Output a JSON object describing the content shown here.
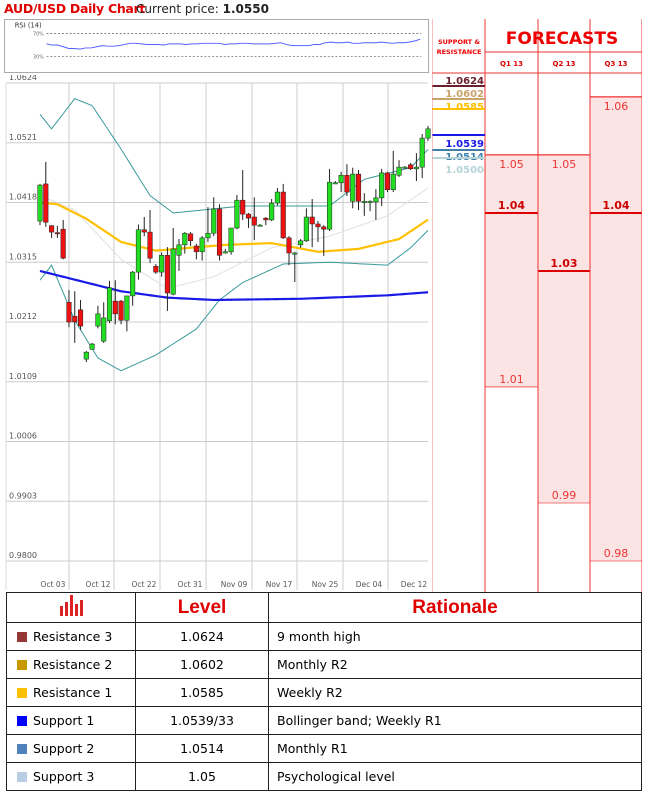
{
  "header": {
    "title": "AUD/USD Daily Chart",
    "price_label": "Current price:",
    "price_value": "1.0550"
  },
  "rsi": {
    "label": "RSI (14)",
    "levels": [
      "70%",
      "30%"
    ],
    "values": [
      52,
      50,
      50,
      47,
      44,
      44,
      43,
      45,
      45,
      47,
      49,
      48,
      48,
      49,
      51,
      53,
      53,
      52,
      51,
      51,
      51,
      50,
      52,
      52,
      52,
      51,
      52,
      52,
      53,
      53,
      53,
      53,
      51,
      52,
      52,
      53,
      53,
      52,
      52,
      52,
      52,
      53,
      54,
      51,
      49,
      49,
      49,
      49,
      51,
      51,
      54,
      55,
      54,
      54,
      55,
      53,
      53,
      54,
      54,
      54,
      55,
      54,
      53,
      54,
      54,
      55,
      57,
      60
    ]
  },
  "chart_data": {
    "type": "candlestick",
    "title": "AUD/USD Daily Chart",
    "ylim": [
      0.98,
      1.0624
    ],
    "y_ticks": [
      "1.0624",
      "1.0521",
      "1.0418",
      "1.0315",
      "1.0212",
      "1.0109",
      "1.0006",
      "0.9903",
      "0.9800"
    ],
    "x_ticks": [
      "Oct 03",
      "Oct 12",
      "Oct 22",
      "Oct 31",
      "Nov 09",
      "Nov 17",
      "Nov 25",
      "Dec 04",
      "Dec 12"
    ],
    "candles_ohlc": [
      [
        1.0386,
        1.045,
        1.0379,
        1.0448
      ],
      [
        1.045,
        1.0488,
        1.0376,
        1.0384
      ],
      [
        1.0378,
        1.0379,
        1.0357,
        1.0367
      ],
      [
        1.0366,
        1.0378,
        1.0357,
        1.0365
      ],
      [
        1.0372,
        1.0388,
        1.032,
        1.0322
      ],
      [
        1.0246,
        1.0267,
        1.0203,
        1.0212
      ],
      [
        1.0222,
        1.0265,
        1.0176,
        1.0212
      ],
      [
        1.0233,
        1.025,
        1.0198,
        1.0205
      ],
      [
        1.0148,
        1.0162,
        1.0143,
        1.016
      ],
      [
        1.0165,
        1.0176,
        1.0164,
        1.0174
      ],
      [
        1.0205,
        1.024,
        1.0201,
        1.0226
      ],
      [
        1.0179,
        1.0246,
        1.0176,
        1.0219
      ],
      [
        1.0214,
        1.0283,
        1.021,
        1.0271
      ],
      [
        1.0248,
        1.0284,
        1.0208,
        1.0226
      ],
      [
        1.0248,
        1.025,
        1.0208,
        1.0215
      ],
      [
        1.0215,
        1.0257,
        1.0196,
        1.0257
      ],
      [
        1.0257,
        1.03,
        1.024,
        1.0298
      ],
      [
        1.0298,
        1.038,
        1.0285,
        1.0371
      ],
      [
        1.0371,
        1.0393,
        1.036,
        1.0367
      ],
      [
        1.0367,
        1.0405,
        1.0314,
        1.0322
      ],
      [
        1.0308,
        1.0312,
        1.0295,
        1.0298
      ],
      [
        1.0298,
        1.0332,
        1.029,
        1.0327
      ],
      [
        1.0327,
        1.0341,
        1.0231,
        1.0262
      ],
      [
        1.026,
        1.0374,
        1.0258,
        1.0338
      ],
      [
        1.0327,
        1.0355,
        1.03,
        1.0345
      ],
      [
        1.0345,
        1.0367,
        1.033,
        1.0365
      ],
      [
        1.0364,
        1.0367,
        1.0343,
        1.0352
      ],
      [
        1.0343,
        1.0347,
        1.032,
        1.0333
      ],
      [
        1.0333,
        1.036,
        1.0318,
        1.0357
      ],
      [
        1.0357,
        1.041,
        1.035,
        1.0365
      ],
      [
        1.0365,
        1.0427,
        1.036,
        1.0407
      ],
      [
        1.0407,
        1.0415,
        1.0318,
        1.0327
      ],
      [
        1.0333,
        1.0338,
        1.033,
        1.0333
      ],
      [
        1.0333,
        1.0338,
        1.0328,
        1.0374
      ],
      [
        1.0374,
        1.0431,
        1.0372,
        1.0422
      ],
      [
        1.0422,
        1.0474,
        1.0388,
        1.0398
      ],
      [
        1.0398,
        1.04,
        1.0374,
        1.0391
      ],
      [
        1.0393,
        1.0427,
        1.0353,
        1.0379
      ],
      [
        1.0379,
        1.0381,
        1.0378,
        1.0379
      ],
      [
        1.0391,
        1.0393,
        1.0379,
        1.0388
      ],
      [
        1.0388,
        1.0424,
        1.0386,
        1.0417
      ],
      [
        1.0417,
        1.0443,
        1.0413,
        1.0436
      ],
      [
        1.0436,
        1.045,
        1.0355,
        1.0357
      ],
      [
        1.0357,
        1.036,
        1.031,
        1.0331
      ],
      [
        1.0331,
        1.0333,
        1.0281,
        1.0331
      ],
      [
        1.0345,
        1.0355,
        1.034,
        1.0352
      ],
      [
        1.0352,
        1.0408,
        1.035,
        1.0393
      ],
      [
        1.0393,
        1.0424,
        1.0341,
        1.0381
      ],
      [
        1.0381,
        1.0386,
        1.035,
        1.0376
      ],
      [
        1.0376,
        1.0379,
        1.0326,
        1.0372
      ],
      [
        1.0372,
        1.0476,
        1.0369,
        1.0453
      ],
      [
        1.0452,
        1.0455,
        1.045,
        1.0452
      ],
      [
        1.0452,
        1.0471,
        1.0436,
        1.0465
      ],
      [
        1.0465,
        1.0484,
        1.0429,
        1.0436
      ],
      [
        1.042,
        1.0478,
        1.0408,
        1.0467
      ],
      [
        1.0467,
        1.0474,
        1.0405,
        1.042
      ],
      [
        1.042,
        1.0434,
        1.0395,
        1.042
      ],
      [
        1.042,
        1.0422,
        1.0403,
        1.042
      ],
      [
        1.0419,
        1.0441,
        1.0388,
        1.0426
      ],
      [
        1.0426,
        1.0476,
        1.0412,
        1.0469
      ],
      [
        1.0469,
        1.0471,
        1.0436,
        1.044
      ],
      [
        1.044,
        1.0507,
        1.0436,
        1.0467
      ],
      [
        1.0465,
        1.0491,
        1.0462,
        1.0479
      ],
      [
        1.0479,
        1.0481,
        1.0477,
        1.0479
      ],
      [
        1.0483,
        1.0486,
        1.0474,
        1.0476
      ],
      [
        1.0476,
        1.0503,
        1.0455,
        1.0479
      ],
      [
        1.0479,
        1.0536,
        1.046,
        1.0529
      ],
      [
        1.0529,
        1.055,
        1.0524,
        1.0545
      ]
    ],
    "overlays": [
      {
        "name": "bollinger-upper",
        "color": "#3a9a9a",
        "points": [
          [
            0,
            1.057
          ],
          [
            2,
            1.0545
          ],
          [
            6,
            1.0597
          ],
          [
            9,
            1.0585
          ],
          [
            14,
            1.051
          ],
          [
            19,
            1.043
          ],
          [
            23,
            1.04
          ],
          [
            28,
            1.0405
          ],
          [
            35,
            1.0412
          ],
          [
            50,
            1.0412
          ],
          [
            56,
            1.0458
          ],
          [
            64,
            1.0478
          ],
          [
            68,
            1.052
          ]
        ]
      },
      {
        "name": "bollinger-lower",
        "color": "#3a9a9a",
        "points": [
          [
            0,
            1.0284
          ],
          [
            2,
            1.031
          ],
          [
            6,
            1.0215
          ],
          [
            10,
            1.015
          ],
          [
            14,
            1.0128
          ],
          [
            20,
            1.0155
          ],
          [
            27,
            1.02
          ],
          [
            31,
            1.025
          ],
          [
            35,
            1.028
          ],
          [
            42,
            1.0312
          ],
          [
            50,
            1.0315
          ],
          [
            60,
            1.031
          ],
          [
            64,
            1.034
          ],
          [
            68,
            1.038
          ]
        ]
      },
      {
        "name": "bollinger-middle",
        "color": "#e0e0e0",
        "points": [
          [
            0,
            1.043
          ],
          [
            6,
            1.0405
          ],
          [
            14,
            1.032
          ],
          [
            22,
            1.027
          ],
          [
            30,
            1.029
          ],
          [
            40,
            1.034
          ],
          [
            50,
            1.036
          ],
          [
            60,
            1.0395
          ],
          [
            68,
            1.045
          ]
        ]
      },
      {
        "name": "sma-short",
        "color": "#ffc000",
        "points": [
          [
            0,
            1.0418
          ],
          [
            3,
            1.0415
          ],
          [
            8,
            1.039
          ],
          [
            14,
            1.035
          ],
          [
            20,
            1.0335
          ],
          [
            26,
            1.034
          ],
          [
            32,
            1.0345
          ],
          [
            40,
            1.0348
          ],
          [
            48,
            1.0333
          ],
          [
            55,
            1.0338
          ],
          [
            62,
            1.0355
          ],
          [
            68,
            1.0395
          ]
        ]
      },
      {
        "name": "sma-long",
        "color": "#1a1ae6",
        "points": [
          [
            0,
            1.03
          ],
          [
            6,
            1.0285
          ],
          [
            14,
            1.0265
          ],
          [
            22,
            1.0254
          ],
          [
            30,
            1.025
          ],
          [
            45,
            1.0252
          ],
          [
            60,
            1.0258
          ],
          [
            68,
            1.0264
          ]
        ]
      }
    ]
  },
  "forecast": {
    "title": "FORECASTS",
    "sr_header": "SUPPORT & RESISTANCE",
    "quarters": [
      {
        "label": "Q1 13",
        "high": 1.05,
        "mid": 1.04,
        "low": 1.01,
        "high_label": "1.05",
        "mid_label": "1.04",
        "low_label": "1.01"
      },
      {
        "label": "Q2 13",
        "high": 1.05,
        "mid": 1.03,
        "low": 0.99,
        "high_label": "1.05",
        "mid_label": "1.03",
        "low_label": "0.99"
      },
      {
        "label": "Q3 13",
        "high": 1.06,
        "mid": 1.04,
        "low": 0.98,
        "high_label": "1.06",
        "mid_label": "1.04",
        "low_label": "0.98"
      }
    ],
    "levels": [
      {
        "label": "1.0624",
        "value": 1.0624,
        "color": "#6b2030"
      },
      {
        "label": "1.0602",
        "value": 1.0602,
        "color": "#c9a26a"
      },
      {
        "label": "1.0585",
        "value": 1.0585,
        "color": "#ffc000"
      },
      {
        "label": "1.0539",
        "value": 1.0539,
        "color": "#1a1ae6"
      },
      {
        "label": "1.0514",
        "value": 1.0514,
        "color": "#3f7fae"
      },
      {
        "label": "1.0500",
        "value": 1.05,
        "color": "#b4d4d8"
      }
    ]
  },
  "table": {
    "headers": [
      "Level",
      "Rationale"
    ],
    "rows": [
      {
        "name": "Resistance 3",
        "level": "1.0624",
        "rationale": "9 month high",
        "color": "#953735"
      },
      {
        "name": "Resistance 2",
        "level": "1.0602",
        "rationale": "Monthly R2",
        "color": "#c89800"
      },
      {
        "name": "Resistance 1",
        "level": "1.0585",
        "rationale": "Weekly R2",
        "color": "#ffc000"
      },
      {
        "name": "Support 1",
        "level": "1.0539/33",
        "rationale": "Bollinger band; Weekly R1",
        "color": "#0000ff"
      },
      {
        "name": "Support 2",
        "level": "1.0514",
        "rationale": "Monthly R1",
        "color": "#4f81bd"
      },
      {
        "name": "Support 3",
        "level": "1.05",
        "rationale": "Psychological level",
        "color": "#b9cde5"
      }
    ]
  }
}
